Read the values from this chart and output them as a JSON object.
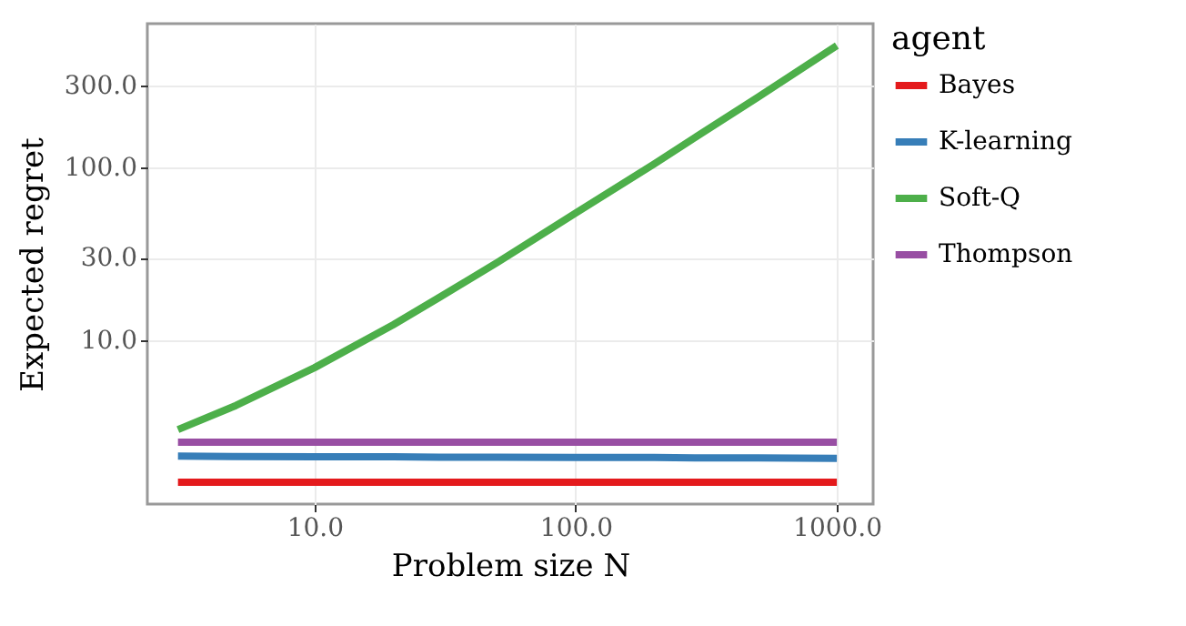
{
  "chart_data": {
    "type": "line",
    "xlabel": "Problem size N",
    "ylabel": "Expected regret",
    "legend_title": "agent",
    "log": "xy",
    "grid": true,
    "legend": "right",
    "line_style": "solid",
    "marker": "none",
    "x": [
      3,
      5,
      10,
      20,
      30,
      50,
      100,
      200,
      300,
      500,
      1000
    ],
    "xlim": [
      2.29,
      1377
    ],
    "ylim": [
      1.13,
      680
    ],
    "xticks": [
      {
        "value": 10,
        "label": "10.0"
      },
      {
        "value": 100,
        "label": "100.0"
      },
      {
        "value": 1000,
        "label": "1000.0"
      }
    ],
    "yticks": [
      {
        "value": 10,
        "label": "10.0"
      },
      {
        "value": 30,
        "label": "30.0"
      },
      {
        "value": 100,
        "label": "100.0"
      },
      {
        "value": 300,
        "label": "300.0"
      }
    ],
    "series": [
      {
        "name": "Bayes",
        "color": "#e41a1c",
        "values": [
          1.51,
          1.51,
          1.51,
          1.51,
          1.51,
          1.51,
          1.51,
          1.51,
          1.51,
          1.51,
          1.51
        ]
      },
      {
        "name": "K-learning",
        "color": "#377eb8",
        "values": [
          2.14,
          2.13,
          2.12,
          2.12,
          2.11,
          2.11,
          2.1,
          2.1,
          2.09,
          2.09,
          2.08
        ]
      },
      {
        "name": "Soft-Q",
        "color": "#4daf4a",
        "values": [
          3.05,
          4.2,
          6.95,
          12.3,
          17.7,
          28.2,
          54.5,
          105,
          156,
          256,
          507
        ]
      },
      {
        "name": "Thompson",
        "color": "#984ea3",
        "values": [
          2.58,
          2.58,
          2.58,
          2.58,
          2.58,
          2.58,
          2.58,
          2.58,
          2.58,
          2.58,
          2.58
        ]
      }
    ]
  }
}
